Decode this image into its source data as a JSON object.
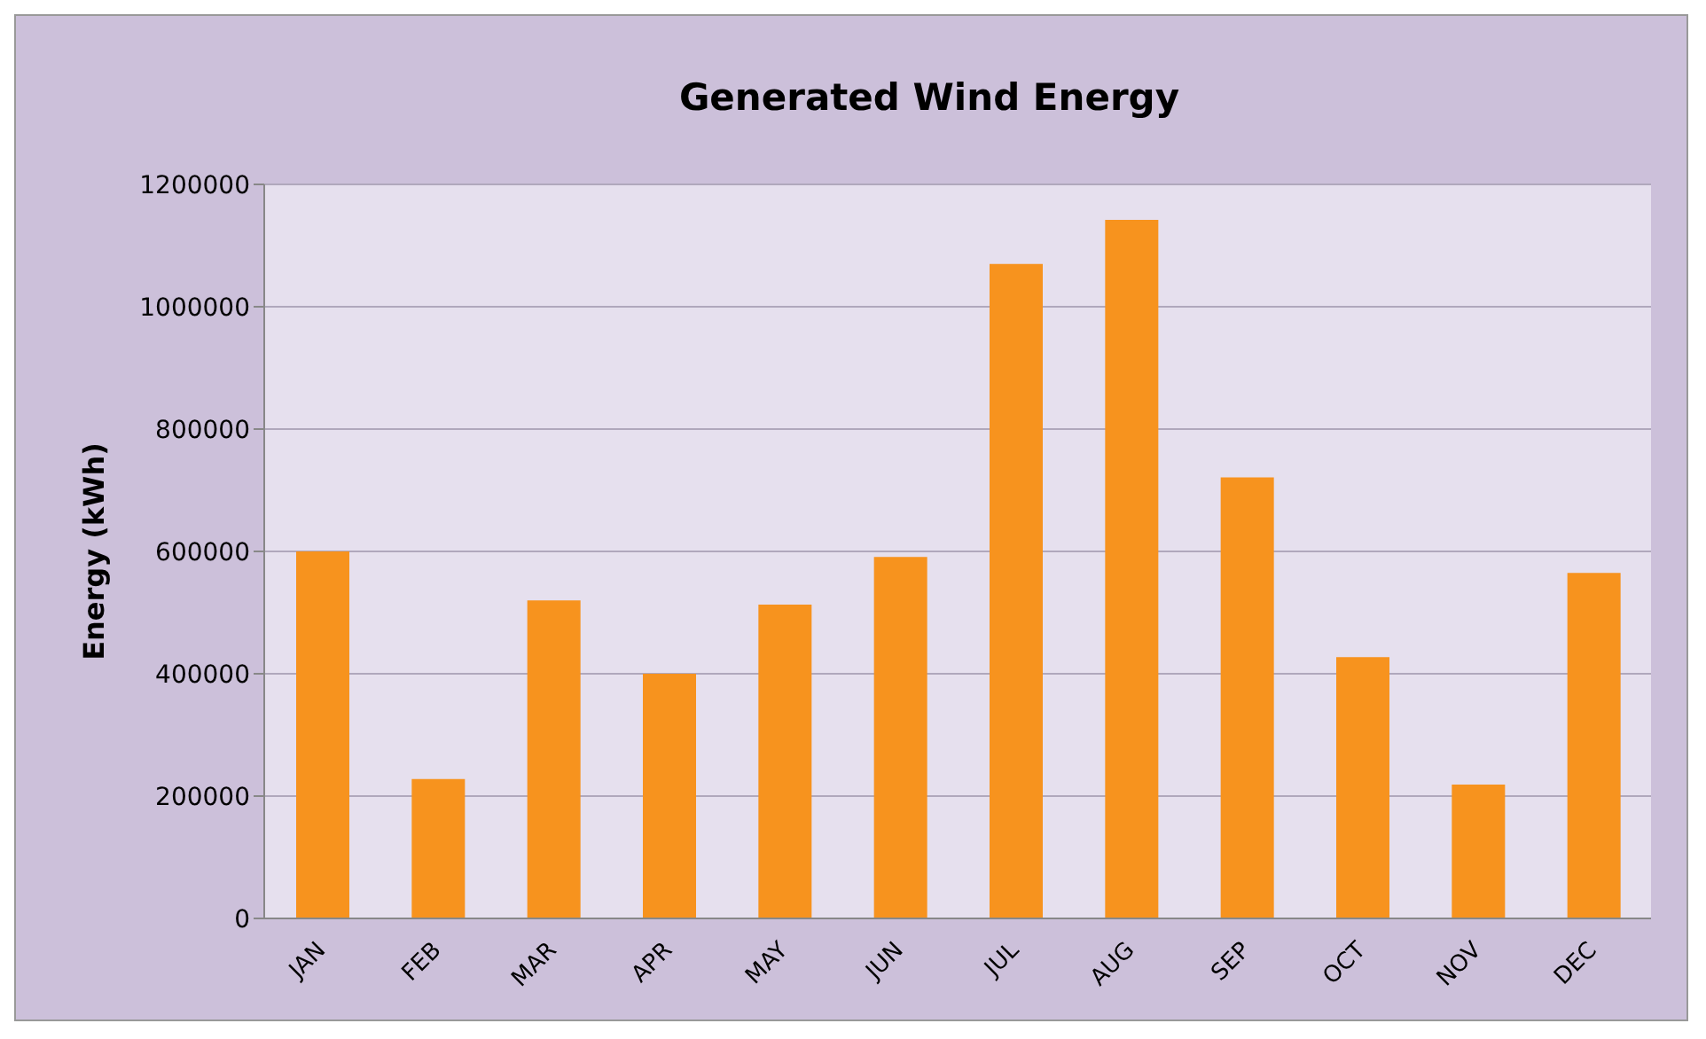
{
  "chart_data": {
    "type": "bar",
    "title": "Generated Wind Energy",
    "ylabel": "Energy (kWh)",
    "categories": [
      "JAN",
      "FEB",
      "MAR",
      "APR",
      "MAY",
      "JUN",
      "JUL",
      "AUG",
      "SEP",
      "OCT",
      "NOV",
      "DEC"
    ],
    "values": [
      600000,
      228000,
      520000,
      400000,
      513000,
      591000,
      1070000,
      1142000,
      721000,
      427000,
      219000,
      565000
    ],
    "color": "#f7931e",
    "ylim": [
      0,
      1200000
    ],
    "yticks": [
      0,
      200000,
      400000,
      600000,
      800000,
      1000000,
      1200000
    ],
    "grid": "y"
  }
}
